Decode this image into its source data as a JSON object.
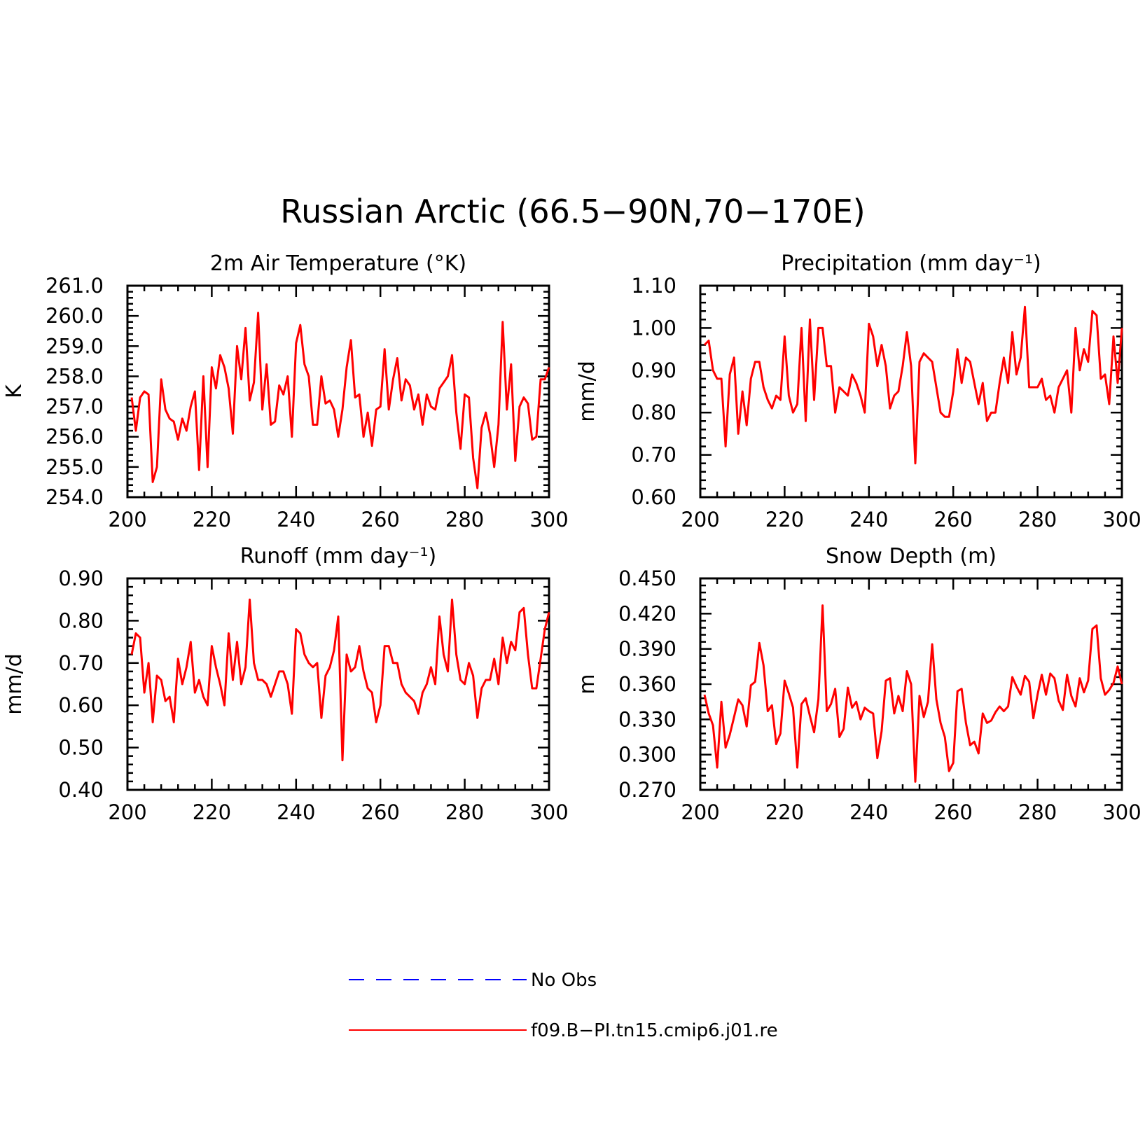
{
  "figure": {
    "title": "Russian Arctic (66.5−90N,70−170E)"
  },
  "legend": {
    "entries": [
      {
        "label": "No Obs",
        "color": "#0000ff",
        "style": "dashed"
      },
      {
        "label": "f09.B−PI.tn15.cmip6.j01.re",
        "color": "#ff0000",
        "style": "solid"
      }
    ]
  },
  "colors": {
    "model": "#ff0000",
    "obs": "#0000ff",
    "axis": "#000000"
  },
  "chart_data": [
    {
      "type": "line",
      "title": "2m Air Temperature (°K)",
      "ylabel": "K",
      "xlim": [
        200,
        300
      ],
      "ylim": [
        254.0,
        261.0
      ],
      "xticks": [
        "200",
        "220",
        "240",
        "260",
        "280",
        "300"
      ],
      "yticks": [
        "254.0",
        "255.0",
        "256.0",
        "257.0",
        "258.0",
        "259.0",
        "260.0",
        "261.0"
      ],
      "series": [
        {
          "name": "f09.B−PI.tn15.cmip6.j01.re",
          "x_start": 201,
          "values": [
            257.3,
            256.2,
            257.3,
            257.5,
            257.4,
            254.5,
            255.0,
            257.9,
            256.9,
            256.6,
            256.5,
            255.9,
            256.6,
            256.2,
            257.0,
            257.5,
            254.9,
            258.0,
            255.0,
            258.3,
            257.6,
            258.7,
            258.3,
            257.6,
            256.1,
            259.0,
            257.9,
            259.6,
            257.2,
            257.8,
            260.1,
            256.9,
            258.4,
            256.4,
            256.5,
            257.7,
            257.4,
            258.0,
            256.0,
            259.1,
            259.7,
            258.4,
            258.0,
            256.4,
            256.4,
            258.0,
            257.1,
            257.2,
            256.9,
            256.0,
            256.9,
            258.3,
            259.2,
            257.3,
            257.4,
            256.0,
            256.8,
            255.7,
            256.9,
            257.0,
            258.9,
            256.9,
            257.9,
            258.6,
            257.2,
            257.9,
            257.7,
            256.9,
            257.4,
            256.4,
            257.4,
            257.0,
            256.9,
            257.6,
            257.8,
            258.0,
            258.7,
            256.8,
            255.6,
            257.4,
            257.3,
            255.3,
            254.3,
            256.3,
            256.8,
            256.1,
            255.0,
            256.4,
            259.8,
            256.9,
            258.4,
            255.2,
            257.0,
            257.3,
            257.1,
            255.9,
            256.0,
            257.9,
            257.9,
            258.3
          ]
        }
      ]
    },
    {
      "type": "line",
      "title": "Precipitation (mm day⁻¹)",
      "ylabel": "mm/d",
      "xlim": [
        200,
        300
      ],
      "ylim": [
        0.6,
        1.1
      ],
      "xticks": [
        "200",
        "220",
        "240",
        "260",
        "280",
        "300"
      ],
      "yticks": [
        "0.60",
        "0.70",
        "0.80",
        "0.90",
        "1.00",
        "1.10"
      ],
      "series": [
        {
          "name": "f09.B−PI.tn15.cmip6.j01.re",
          "x_start": 201,
          "values": [
            0.96,
            0.97,
            0.9,
            0.88,
            0.88,
            0.72,
            0.89,
            0.93,
            0.75,
            0.85,
            0.77,
            0.88,
            0.92,
            0.92,
            0.86,
            0.83,
            0.81,
            0.84,
            0.83,
            0.98,
            0.84,
            0.8,
            0.82,
            1.0,
            0.78,
            1.02,
            0.83,
            1.0,
            1.0,
            0.91,
            0.91,
            0.8,
            0.86,
            0.85,
            0.84,
            0.89,
            0.87,
            0.84,
            0.8,
            1.01,
            0.98,
            0.91,
            0.96,
            0.91,
            0.81,
            0.84,
            0.85,
            0.91,
            0.99,
            0.91,
            0.68,
            0.92,
            0.94,
            0.93,
            0.92,
            0.86,
            0.8,
            0.79,
            0.79,
            0.85,
            0.95,
            0.87,
            0.93,
            0.92,
            0.87,
            0.82,
            0.87,
            0.78,
            0.8,
            0.8,
            0.87,
            0.93,
            0.87,
            0.99,
            0.89,
            0.93,
            1.05,
            0.86,
            0.86,
            0.86,
            0.88,
            0.83,
            0.84,
            0.8,
            0.86,
            0.88,
            0.9,
            0.8,
            1.0,
            0.9,
            0.95,
            0.92,
            1.04,
            1.03,
            0.88,
            0.89,
            0.82,
            0.98,
            0.87,
            1.0
          ]
        }
      ]
    },
    {
      "type": "line",
      "title": "Runoff (mm day⁻¹)",
      "ylabel": "mm/d",
      "xlim": [
        200,
        300
      ],
      "ylim": [
        0.4,
        0.9
      ],
      "xticks": [
        "200",
        "220",
        "240",
        "260",
        "280",
        "300"
      ],
      "yticks": [
        "0.40",
        "0.50",
        "0.60",
        "0.70",
        "0.80",
        "0.90"
      ],
      "series": [
        {
          "name": "f09.B−PI.tn15.cmip6.j01.re",
          "x_start": 201,
          "values": [
            0.72,
            0.77,
            0.76,
            0.63,
            0.7,
            0.56,
            0.67,
            0.66,
            0.61,
            0.62,
            0.56,
            0.71,
            0.65,
            0.69,
            0.75,
            0.63,
            0.66,
            0.62,
            0.6,
            0.74,
            0.69,
            0.65,
            0.6,
            0.77,
            0.66,
            0.75,
            0.65,
            0.69,
            0.85,
            0.7,
            0.66,
            0.66,
            0.65,
            0.62,
            0.65,
            0.68,
            0.68,
            0.65,
            0.58,
            0.78,
            0.77,
            0.72,
            0.7,
            0.69,
            0.7,
            0.57,
            0.67,
            0.69,
            0.73,
            0.81,
            0.47,
            0.72,
            0.68,
            0.69,
            0.74,
            0.68,
            0.64,
            0.63,
            0.56,
            0.6,
            0.74,
            0.74,
            0.7,
            0.7,
            0.65,
            0.63,
            0.62,
            0.61,
            0.58,
            0.63,
            0.65,
            0.69,
            0.65,
            0.81,
            0.72,
            0.68,
            0.85,
            0.72,
            0.66,
            0.65,
            0.7,
            0.67,
            0.57,
            0.64,
            0.66,
            0.66,
            0.71,
            0.65,
            0.76,
            0.7,
            0.75,
            0.73,
            0.82,
            0.83,
            0.72,
            0.64,
            0.64,
            0.71,
            0.78,
            0.82
          ]
        }
      ]
    },
    {
      "type": "line",
      "title": "Snow Depth (m)",
      "ylabel": "m",
      "xlim": [
        200,
        300
      ],
      "ylim": [
        0.27,
        0.45
      ],
      "xticks": [
        "200",
        "220",
        "240",
        "260",
        "280",
        "300"
      ],
      "yticks": [
        "0.270",
        "0.300",
        "0.330",
        "0.360",
        "0.390",
        "0.420",
        "0.450"
      ],
      "series": [
        {
          "name": "f09.B−PI.tn15.cmip6.j01.re",
          "x_start": 201,
          "values": [
            0.351,
            0.335,
            0.325,
            0.289,
            0.345,
            0.306,
            0.317,
            0.332,
            0.347,
            0.342,
            0.324,
            0.359,
            0.362,
            0.395,
            0.376,
            0.337,
            0.342,
            0.309,
            0.318,
            0.363,
            0.352,
            0.34,
            0.289,
            0.343,
            0.348,
            0.333,
            0.319,
            0.347,
            0.427,
            0.337,
            0.343,
            0.356,
            0.315,
            0.322,
            0.357,
            0.34,
            0.345,
            0.33,
            0.34,
            0.337,
            0.335,
            0.297,
            0.32,
            0.363,
            0.365,
            0.335,
            0.35,
            0.337,
            0.371,
            0.36,
            0.277,
            0.35,
            0.332,
            0.345,
            0.394,
            0.347,
            0.327,
            0.315,
            0.286,
            0.293,
            0.354,
            0.356,
            0.327,
            0.308,
            0.311,
            0.301,
            0.335,
            0.327,
            0.329,
            0.336,
            0.341,
            0.337,
            0.341,
            0.366,
            0.358,
            0.351,
            0.367,
            0.362,
            0.331,
            0.351,
            0.368,
            0.351,
            0.369,
            0.365,
            0.346,
            0.338,
            0.368,
            0.35,
            0.341,
            0.365,
            0.353,
            0.363,
            0.407,
            0.41,
            0.365,
            0.351,
            0.355,
            0.361,
            0.375,
            0.36
          ]
        }
      ]
    }
  ]
}
